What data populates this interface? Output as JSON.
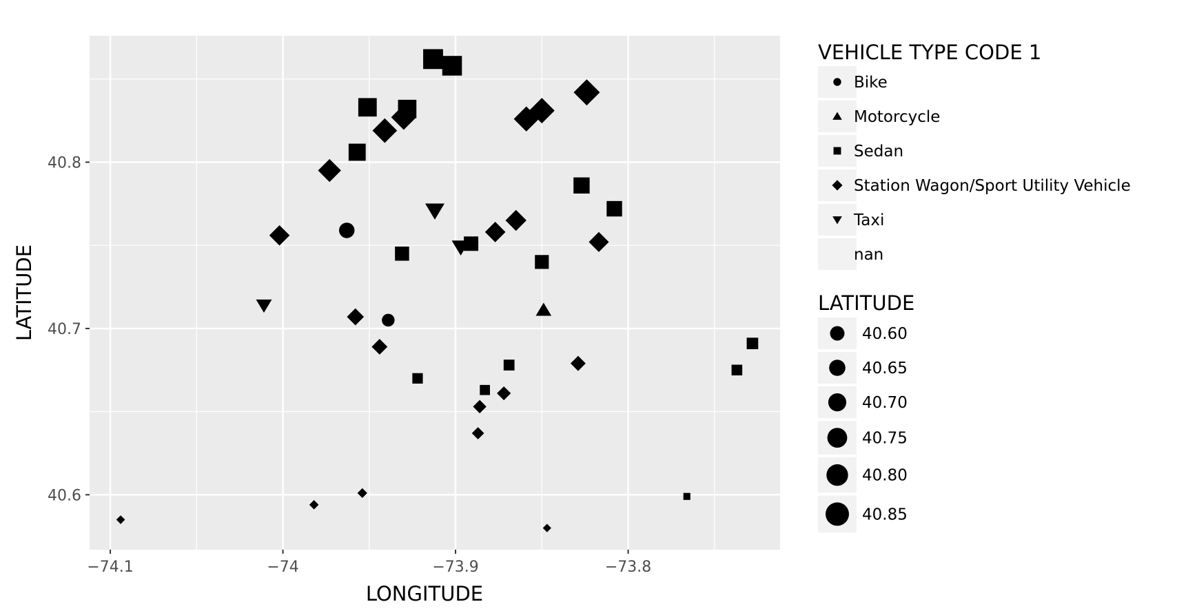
{
  "chart_data": {
    "type": "scatter",
    "title": "",
    "xlabel": "LONGITUDE",
    "ylabel": "LATITUDE",
    "xlim": [
      -74.112,
      -73.712
    ],
    "ylim": [
      40.567,
      40.876
    ],
    "x_ticks": [
      {
        "value": -74.1,
        "label": "−74.1"
      },
      {
        "value": -74.0,
        "label": "−74"
      },
      {
        "value": -73.9,
        "label": "−73.9"
      },
      {
        "value": -73.8,
        "label": "−73.8"
      }
    ],
    "y_ticks": [
      {
        "value": 40.6,
        "label": "40.6"
      },
      {
        "value": 40.7,
        "label": "40.7"
      },
      {
        "value": 40.8,
        "label": "40.8"
      }
    ],
    "grid": true,
    "panel_background": "#ebebeb",
    "grid_color": "#ffffff",
    "point_color": "#000000",
    "legend_placement": "right",
    "shape_legend": {
      "title": "VEHICLE TYPE CODE 1",
      "items": [
        {
          "label": "Bike",
          "shape": "circle"
        },
        {
          "label": "Motorcycle",
          "shape": "triangle-up"
        },
        {
          "label": "Sedan",
          "shape": "square"
        },
        {
          "label": "Station Wagon/Sport Utility Vehicle",
          "shape": "diamond"
        },
        {
          "label": "Taxi",
          "shape": "triangle-down"
        },
        {
          "label": "nan",
          "shape": "none"
        }
      ]
    },
    "size_legend": {
      "title": "LATITUDE",
      "items": [
        {
          "value": 40.6,
          "label": "40.60"
        },
        {
          "value": 40.65,
          "label": "40.65"
        },
        {
          "value": 40.7,
          "label": "40.70"
        },
        {
          "value": 40.75,
          "label": "40.75"
        },
        {
          "value": 40.8,
          "label": "40.80"
        },
        {
          "value": 40.85,
          "label": "40.85"
        }
      ]
    },
    "points": [
      {
        "x": -74.094,
        "y": 40.585,
        "type": "Station Wagon/Sport Utility Vehicle"
      },
      {
        "x": -73.982,
        "y": 40.594,
        "type": "Station Wagon/Sport Utility Vehicle"
      },
      {
        "x": -73.954,
        "y": 40.601,
        "type": "Station Wagon/Sport Utility Vehicle"
      },
      {
        "x": -73.847,
        "y": 40.58,
        "type": "Station Wagon/Sport Utility Vehicle"
      },
      {
        "x": -73.766,
        "y": 40.599,
        "type": "Sedan"
      },
      {
        "x": -73.887,
        "y": 40.637,
        "type": "Station Wagon/Sport Utility Vehicle"
      },
      {
        "x": -73.886,
        "y": 40.653,
        "type": "Station Wagon/Sport Utility Vehicle"
      },
      {
        "x": -73.883,
        "y": 40.663,
        "type": "Sedan"
      },
      {
        "x": -73.872,
        "y": 40.661,
        "type": "Station Wagon/Sport Utility Vehicle"
      },
      {
        "x": -73.922,
        "y": 40.67,
        "type": "Sedan"
      },
      {
        "x": -73.869,
        "y": 40.678,
        "type": "Sedan"
      },
      {
        "x": -73.829,
        "y": 40.679,
        "type": "Station Wagon/Sport Utility Vehicle"
      },
      {
        "x": -73.737,
        "y": 40.675,
        "type": "Sedan"
      },
      {
        "x": -73.728,
        "y": 40.691,
        "type": "Sedan"
      },
      {
        "x": -73.944,
        "y": 40.689,
        "type": "Station Wagon/Sport Utility Vehicle"
      },
      {
        "x": -73.958,
        "y": 40.707,
        "type": "Station Wagon/Sport Utility Vehicle"
      },
      {
        "x": -73.939,
        "y": 40.705,
        "type": "Bike"
      },
      {
        "x": -73.849,
        "y": 40.711,
        "type": "Motorcycle"
      },
      {
        "x": -74.011,
        "y": 40.714,
        "type": "Taxi"
      },
      {
        "x": -73.931,
        "y": 40.745,
        "type": "Sedan"
      },
      {
        "x": -73.85,
        "y": 40.74,
        "type": "Sedan"
      },
      {
        "x": -73.897,
        "y": 40.749,
        "type": "Taxi"
      },
      {
        "x": -73.891,
        "y": 40.751,
        "type": "Sedan"
      },
      {
        "x": -73.877,
        "y": 40.758,
        "type": "Station Wagon/Sport Utility Vehicle"
      },
      {
        "x": -73.865,
        "y": 40.765,
        "type": "Station Wagon/Sport Utility Vehicle"
      },
      {
        "x": -73.817,
        "y": 40.752,
        "type": "Station Wagon/Sport Utility Vehicle"
      },
      {
        "x": -74.002,
        "y": 40.756,
        "type": "Station Wagon/Sport Utility Vehicle"
      },
      {
        "x": -73.963,
        "y": 40.759,
        "type": "Bike"
      },
      {
        "x": -73.912,
        "y": 40.771,
        "type": "Taxi"
      },
      {
        "x": -73.808,
        "y": 40.772,
        "type": "Sedan"
      },
      {
        "x": -73.827,
        "y": 40.786,
        "type": "Sedan"
      },
      {
        "x": -73.973,
        "y": 40.795,
        "type": "Station Wagon/Sport Utility Vehicle"
      },
      {
        "x": -73.957,
        "y": 40.806,
        "type": "Sedan"
      },
      {
        "x": -73.941,
        "y": 40.819,
        "type": "Station Wagon/Sport Utility Vehicle"
      },
      {
        "x": -73.951,
        "y": 40.833,
        "type": "Sedan"
      },
      {
        "x": -73.93,
        "y": 40.827,
        "type": "Station Wagon/Sport Utility Vehicle"
      },
      {
        "x": -73.928,
        "y": 40.832,
        "type": "Sedan"
      },
      {
        "x": -73.859,
        "y": 40.826,
        "type": "Station Wagon/Sport Utility Vehicle"
      },
      {
        "x": -73.85,
        "y": 40.831,
        "type": "Station Wagon/Sport Utility Vehicle"
      },
      {
        "x": -73.824,
        "y": 40.842,
        "type": "Station Wagon/Sport Utility Vehicle"
      },
      {
        "x": -73.913,
        "y": 40.862,
        "type": "Sedan"
      },
      {
        "x": -73.902,
        "y": 40.858,
        "type": "Sedan"
      }
    ]
  }
}
